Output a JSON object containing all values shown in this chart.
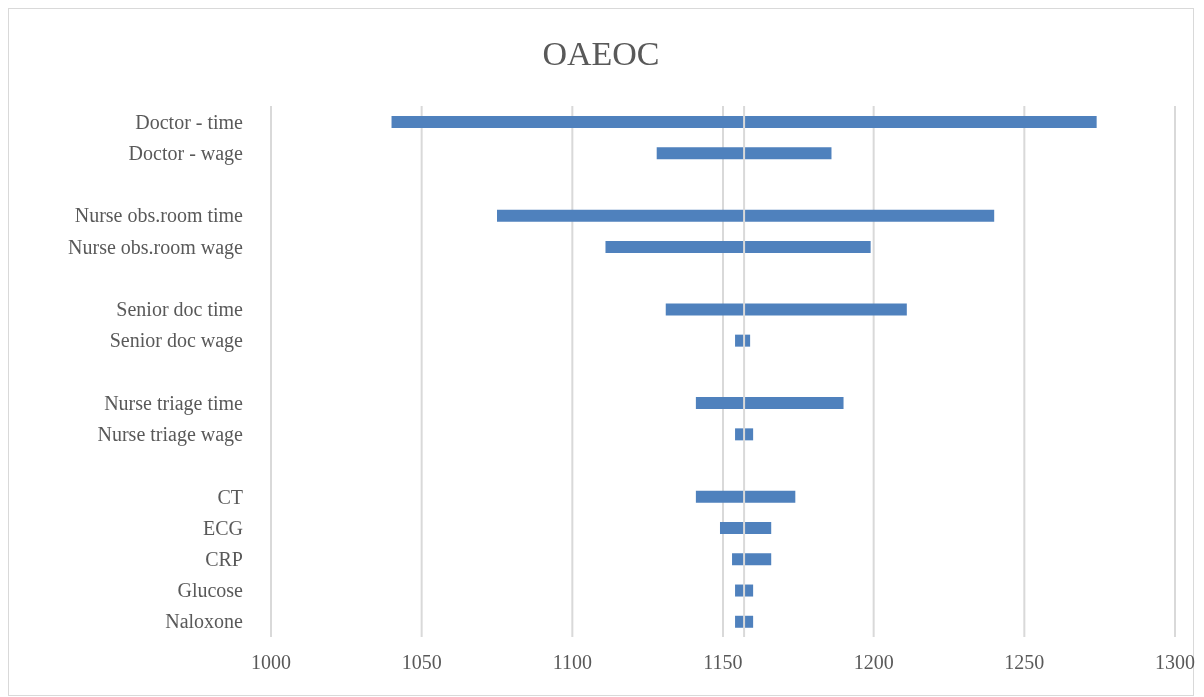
{
  "chart_data": {
    "type": "bar",
    "title": "OAEOC",
    "orientation": "horizontal",
    "categories": [
      "Doctor - time",
      "Doctor - wage",
      null,
      "Nurse obs.room time",
      "Nurse obs.room wage",
      null,
      "Senior doc time",
      "Senior doc wage",
      null,
      "Nurse triage time",
      "Nurse triage wage",
      null,
      "CT",
      "ECG",
      "CRP",
      "Glucose",
      "Naloxone"
    ],
    "base": [
      1040,
      1128,
      null,
      1075,
      1111,
      null,
      1131,
      1154,
      null,
      1141,
      1154,
      null,
      1141,
      1149,
      1153,
      1154,
      1154
    ],
    "values": [
      234,
      58,
      null,
      165,
      88,
      null,
      80,
      5,
      null,
      49,
      6,
      null,
      33,
      17,
      13,
      6,
      6
    ],
    "color": "#4f81bd",
    "xlim": [
      1000,
      1300
    ],
    "xticks": [
      1000,
      1050,
      1100,
      1150,
      1200,
      1250,
      1300
    ],
    "grid": "x",
    "ref_lines": [
      {
        "axis": "x",
        "value": 1157,
        "color": "#d9d9d9"
      }
    ]
  }
}
